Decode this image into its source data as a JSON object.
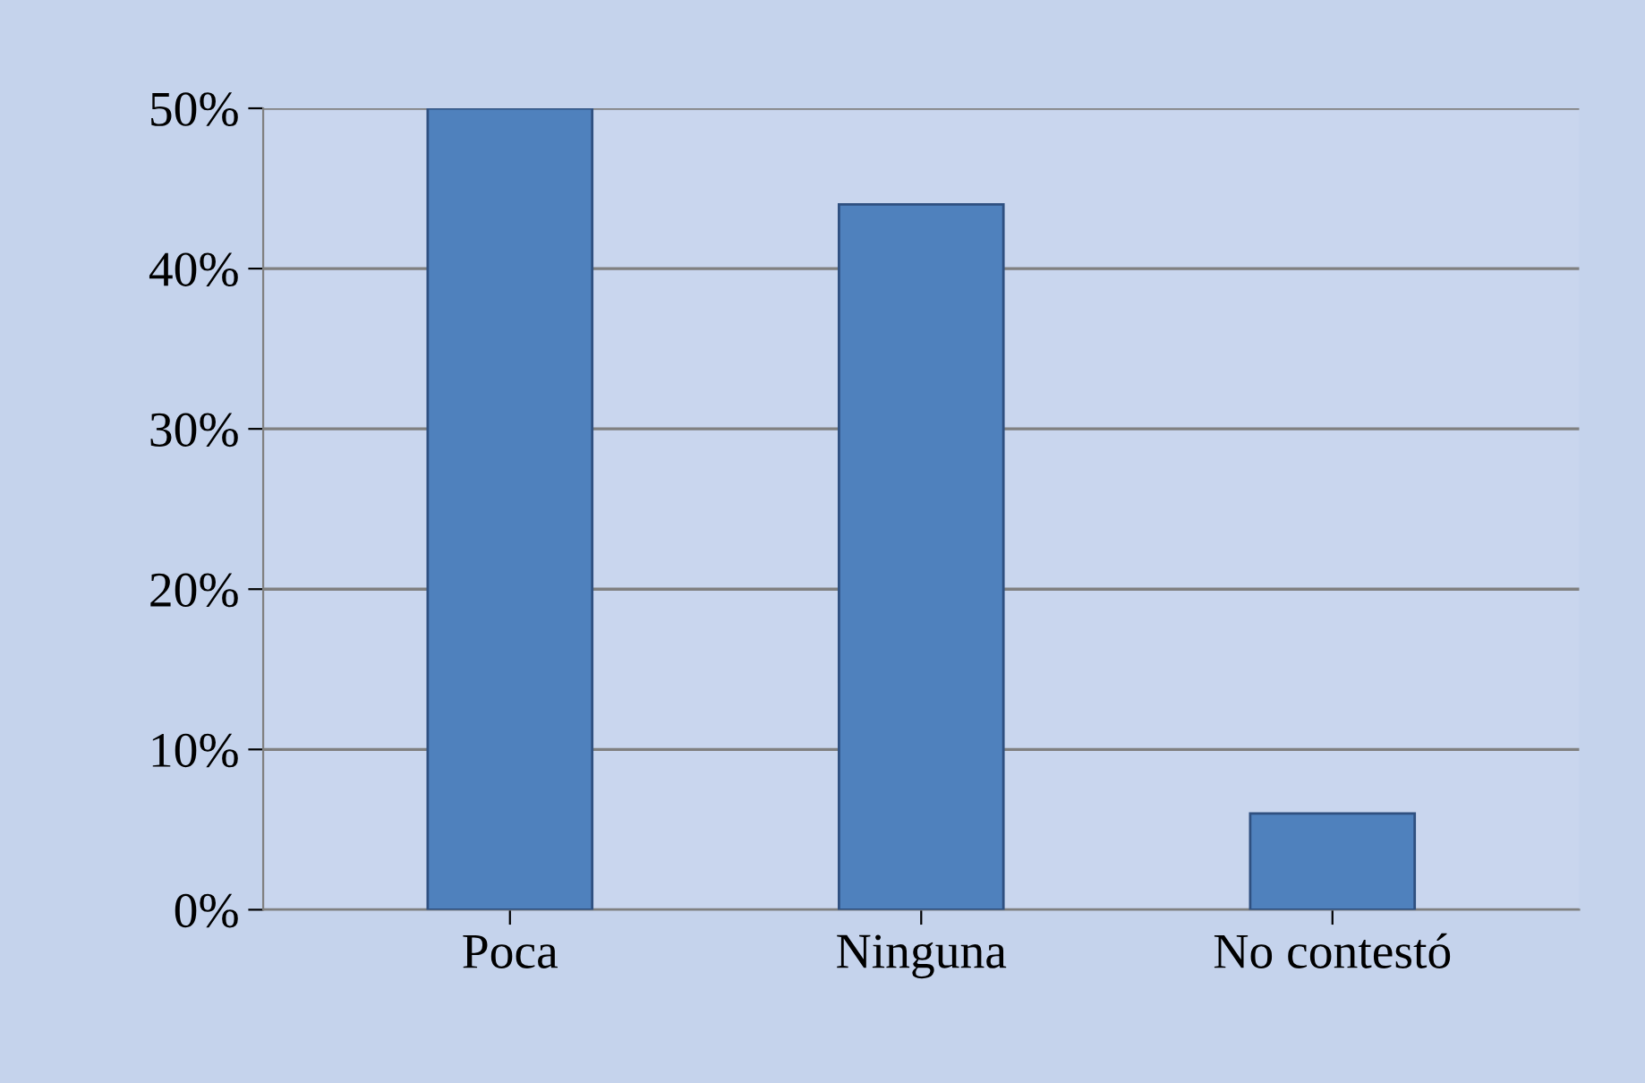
{
  "chart_data": {
    "type": "bar",
    "categories": [
      "Poca",
      "Ninguna",
      "No contestó"
    ],
    "values": [
      50,
      44,
      6
    ],
    "color": "#4f81bd",
    "ylim": [
      0,
      50
    ],
    "yticks": [
      {
        "value": 0,
        "label": "0%"
      },
      {
        "value": 10,
        "label": "10%"
      },
      {
        "value": 20,
        "label": "20%"
      },
      {
        "value": 30,
        "label": "30%"
      },
      {
        "value": 40,
        "label": "40%"
      },
      {
        "value": 50,
        "label": "50%"
      }
    ],
    "grid": "y"
  }
}
